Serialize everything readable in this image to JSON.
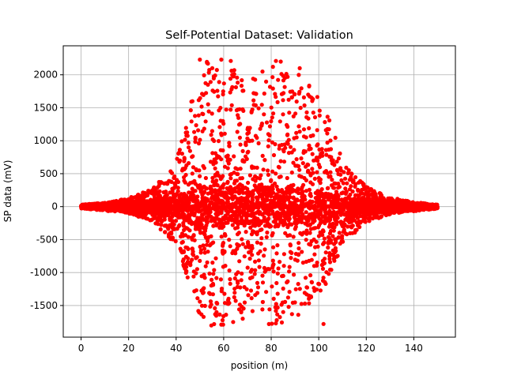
{
  "chart_data": {
    "type": "scatter",
    "title": "Self-Potential Dataset: Validation",
    "xlabel": "position (m)",
    "ylabel": "SP data (mV)",
    "xlim": [
      -7.5,
      157.5
    ],
    "ylim": [
      -1980,
      2440
    ],
    "xticks": [
      0,
      20,
      40,
      60,
      80,
      100,
      120,
      140
    ],
    "yticks": [
      -1500,
      -1000,
      -500,
      0,
      500,
      1000,
      1500,
      2000
    ],
    "grid": true,
    "legend": "none",
    "marker_color": "#ff0000",
    "series": [
      {
        "points_description": "dense symmetric scatter of SP values vs. position; amplitude is small near the ends and grows to about +2200 / -1800 mV around positions 45-105 m",
        "x_range": [
          0,
          150
        ],
        "envelope": [
          [
            0,
            30
          ],
          [
            10,
            60
          ],
          [
            20,
            130
          ],
          [
            30,
            280
          ],
          [
            40,
            700
          ],
          [
            45,
            1400
          ],
          [
            50,
            2230
          ],
          [
            60,
            2230
          ],
          [
            70,
            1900
          ],
          [
            80,
            2210
          ],
          [
            90,
            2100
          ],
          [
            100,
            1680
          ],
          [
            105,
            1300
          ],
          [
            110,
            700
          ],
          [
            120,
            300
          ],
          [
            130,
            140
          ],
          [
            140,
            70
          ],
          [
            150,
            30
          ]
        ],
        "notable_points": [
          [
            50,
            2230
          ],
          [
            53,
            2180
          ],
          [
            59,
            2230
          ],
          [
            63,
            2210
          ],
          [
            82,
            2210
          ],
          [
            84,
            2200
          ],
          [
            92,
            2100
          ],
          [
            59,
            -1790
          ],
          [
            64,
            -1750
          ],
          [
            102,
            -1780
          ],
          [
            57,
            -1600
          ],
          [
            68,
            -1700
          ]
        ]
      }
    ]
  }
}
